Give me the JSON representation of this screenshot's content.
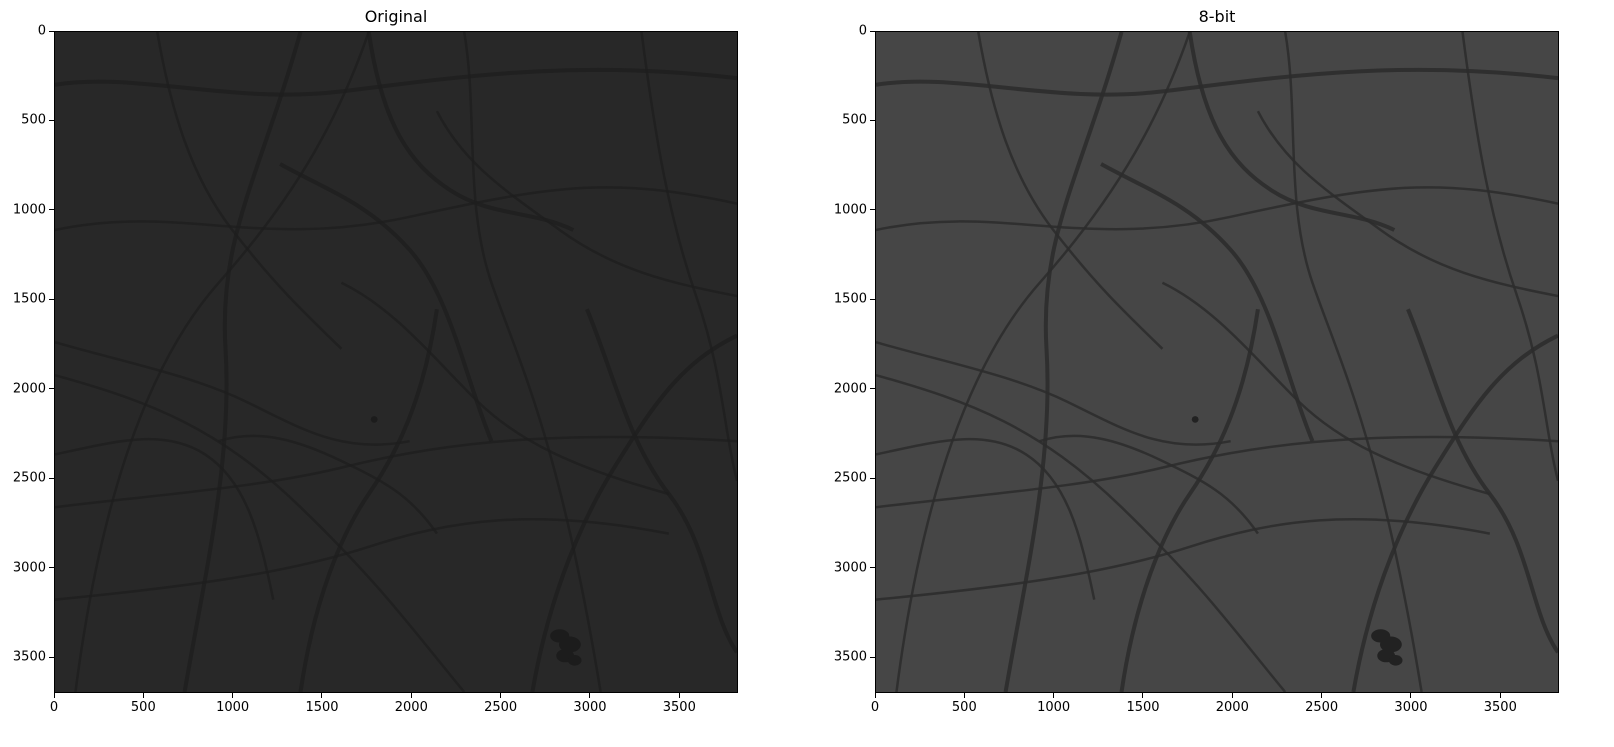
{
  "figure": {
    "background": "#ffffff",
    "panels": [
      {
        "name": "original",
        "title": "Original",
        "image_tone": "#282828",
        "fiber_tone": "#1e1e1e",
        "blob_tone": "#1c1c1c",
        "x_ticks": [
          "0",
          "500",
          "1000",
          "1500",
          "2000",
          "2500",
          "3000",
          "3500"
        ],
        "y_ticks": [
          "0",
          "500",
          "1000",
          "1500",
          "2000",
          "2500",
          "3000",
          "3500"
        ]
      },
      {
        "name": "8-bit",
        "title": "8-bit",
        "image_tone": "#464646",
        "fiber_tone": "#2b2b2b",
        "blob_tone": "#222222",
        "x_ticks": [
          "0",
          "500",
          "1000",
          "1500",
          "2000",
          "2500",
          "3000",
          "3500"
        ],
        "y_ticks": [
          "0",
          "500",
          "1000",
          "1500",
          "2000",
          "2500",
          "3000",
          "3500"
        ]
      }
    ]
  }
}
